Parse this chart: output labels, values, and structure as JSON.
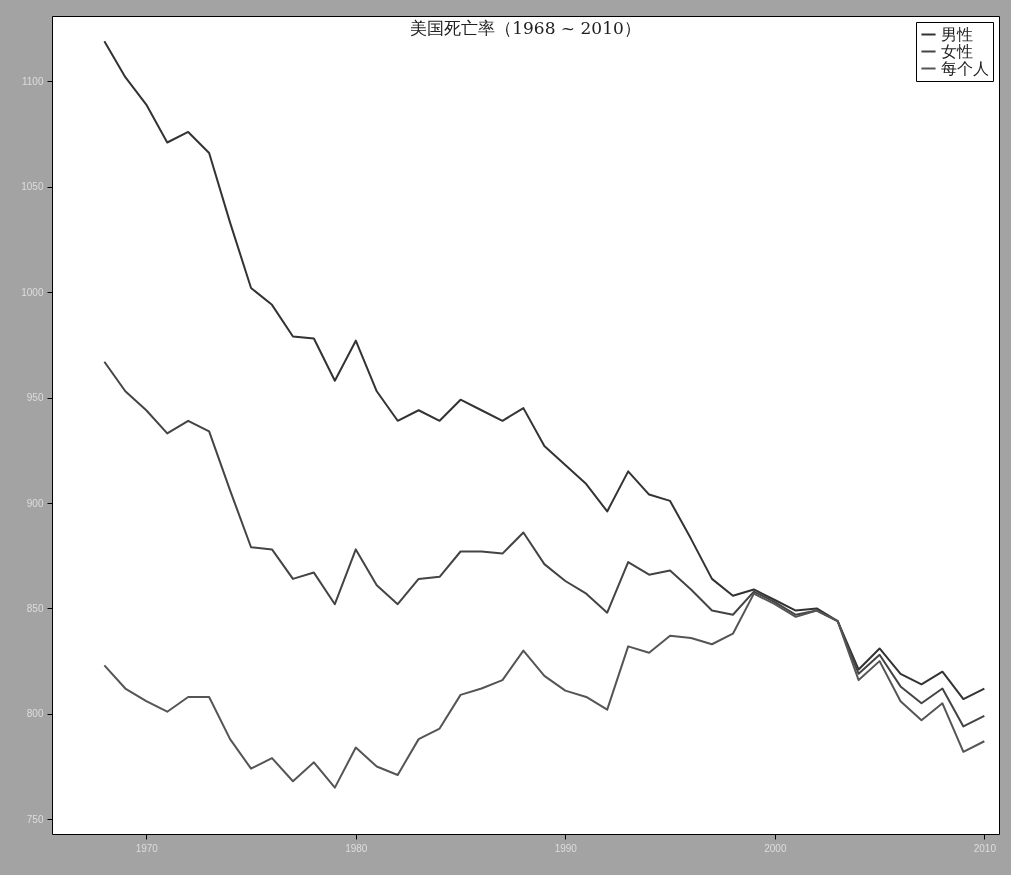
{
  "chart_data": {
    "type": "line",
    "title": "美国死亡率（1968 ~ 2010）",
    "x": [
      1968,
      1969,
      1970,
      1971,
      1972,
      1973,
      1974,
      1975,
      1976,
      1977,
      1978,
      1979,
      1980,
      1981,
      1982,
      1983,
      1984,
      1985,
      1986,
      1987,
      1988,
      1989,
      1990,
      1991,
      1992,
      1993,
      1994,
      1995,
      1996,
      1997,
      1998,
      1999,
      2000,
      2001,
      2002,
      2003,
      2004,
      2005,
      2006,
      2007,
      2008,
      2009,
      2010
    ],
    "series": [
      {
        "name": "男性",
        "color": "#333333",
        "values": [
          1119,
          1102,
          1089,
          1071,
          1076,
          1066,
          1033,
          1002,
          994,
          979,
          978,
          958,
          977,
          953,
          939,
          944,
          939,
          949,
          944,
          939,
          945,
          927,
          918,
          909,
          896,
          915,
          904,
          901,
          883,
          864,
          856,
          859,
          854,
          849,
          850,
          844,
          821,
          831,
          819,
          814,
          820,
          807,
          812
        ]
      },
      {
        "name": "女性",
        "color": "#444444",
        "values": [
          967,
          953,
          944,
          933,
          939,
          934,
          906,
          879,
          878,
          864,
          867,
          852,
          878,
          861,
          852,
          864,
          865,
          877,
          877,
          876,
          886,
          871,
          863,
          857,
          848,
          872,
          866,
          868,
          859,
          849,
          847,
          858,
          853,
          847,
          849,
          844,
          819,
          828,
          813,
          805,
          812,
          794,
          799
        ]
      },
      {
        "name": "每个人",
        "color": "#555555",
        "values": [
          823,
          812,
          806,
          801,
          808,
          808,
          788,
          774,
          779,
          768,
          777,
          765,
          784,
          775,
          771,
          788,
          793,
          809,
          812,
          816,
          830,
          818,
          811,
          808,
          802,
          832,
          829,
          837,
          836,
          833,
          838,
          857,
          852,
          846,
          849,
          844,
          816,
          825,
          806,
          797,
          805,
          782,
          787
        ]
      }
    ],
    "xlim": [
      1965.5,
      2010.7
    ],
    "ylim": [
      743,
      1131
    ],
    "xticks": [
      1970,
      1980,
      1990,
      2000,
      2010
    ],
    "yticks": [
      750,
      800,
      850,
      900,
      950,
      1000,
      1050,
      1100
    ],
    "legend": "top right",
    "grid": false
  }
}
